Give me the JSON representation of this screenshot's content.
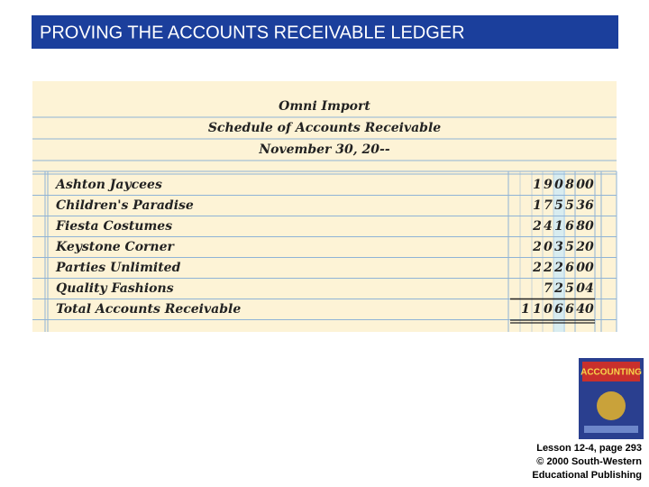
{
  "header": {
    "title": "PROVING THE ACCOUNTS RECEIVABLE LEDGER"
  },
  "schedule": {
    "heading": [
      "Omni Import",
      "Schedule of Accounts Receivable",
      "November 30, 20--"
    ],
    "rows": [
      {
        "name": "Ashton Jaycees",
        "dollars": "1908",
        "cents": "00"
      },
      {
        "name": "Children's Paradise",
        "dollars": "1755",
        "cents": "36"
      },
      {
        "name": "Fiesta Costumes",
        "dollars": "2416",
        "cents": "80"
      },
      {
        "name": "Keystone Corner",
        "dollars": "2035",
        "cents": "20"
      },
      {
        "name": "Parties Unlimited",
        "dollars": "2226",
        "cents": "00"
      },
      {
        "name": "Quality Fashions",
        "dollars": "725",
        "cents": "04"
      },
      {
        "name": "Total Accounts Receivable",
        "dollars": "11066",
        "cents": "40"
      }
    ]
  },
  "footer": {
    "lines": [
      "Lesson 12-4, page 293",
      "© 2000 South-Western",
      "Educational Publishing"
    ]
  }
}
